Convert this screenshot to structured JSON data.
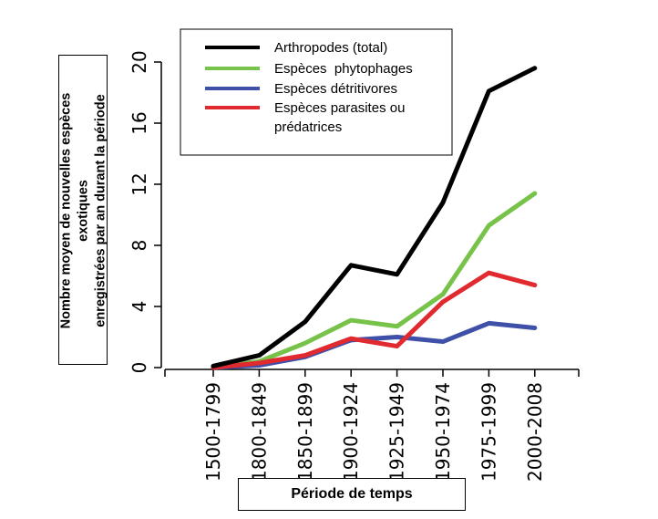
{
  "chart_data": {
    "type": "line",
    "categories": [
      "1500-1799",
      "1800-1849",
      "1850-1899",
      "1900-1924",
      "1925-1949",
      "1950-1974",
      "1975-1999",
      "2000-2008"
    ],
    "xlabel": "Période de temps",
    "ylabel_line1": "Nombre moyen de nouvelles espèces exotiques",
    "ylabel_line2": "enregistrées par an durant la période",
    "ylim": [
      0,
      20
    ],
    "yticks": [
      0,
      4,
      8,
      12,
      16,
      20
    ],
    "grid": false,
    "legend_position": "top",
    "series": [
      {
        "name": "Arthropodes (total)",
        "color": "#000000",
        "values": [
          0.1,
          0.8,
          3.0,
          6.7,
          6.1,
          10.8,
          18.1,
          19.6
        ]
      },
      {
        "name": "Espèces  phytophages",
        "color": "#77c34a",
        "values": [
          0.05,
          0.4,
          1.6,
          3.1,
          2.7,
          4.8,
          9.3,
          11.4
        ]
      },
      {
        "name": "Espèces détritivores",
        "color": "#3f50a8",
        "values": [
          0.0,
          0.15,
          0.7,
          1.8,
          2.0,
          1.7,
          2.9,
          2.6
        ]
      },
      {
        "name_line1": "Espèces parasites ou",
        "name_line2": "prédatrices",
        "color": "#e02a2f",
        "values": [
          0.0,
          0.3,
          0.8,
          1.9,
          1.4,
          4.3,
          6.2,
          5.4
        ]
      }
    ]
  }
}
